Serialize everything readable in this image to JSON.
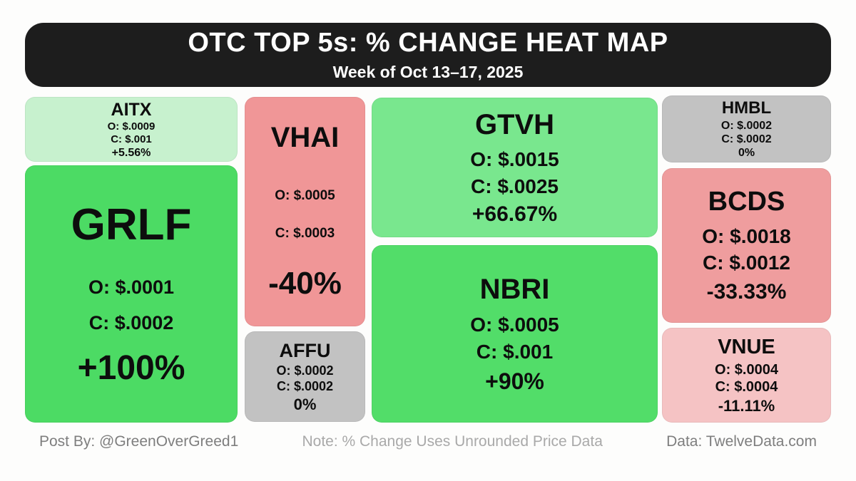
{
  "header": {
    "title": "OTC TOP 5s: % CHANGE HEAT MAP",
    "subtitle": "Week of Oct 13–17, 2025"
  },
  "footer": {
    "post_by": "Post By: @GreenOverGreed1",
    "note": "Note: % Change Uses Unrounded Price Data",
    "source": "Data: TwelveData.com"
  },
  "colors": {
    "header_bg": "#1d1d1d",
    "header_text": "#ffffff",
    "page_bg": "#fdfdfc",
    "gain_strong": "#4cdb64",
    "gain_medium": "#79e78e",
    "gain_light": "#c7f1ce",
    "loss_strong": "#f09697",
    "loss_light": "#f5c3c4",
    "flat_gray": "#c2c2c2",
    "tile_text": "#0d0d0d"
  },
  "chart_data": {
    "type": "heatmap",
    "title": "OTC TOP 5s: % CHANGE HEAT MAP",
    "subtitle": "Week of Oct 13–17, 2025",
    "value_field": "percent_change_week",
    "tiles": [
      {
        "ticker": "AITX",
        "open": 0.0009,
        "close": 0.001,
        "percent_change": 5.56,
        "open_label": "O: $.0009",
        "close_label": "C: $.001",
        "change_label": "+5.56%",
        "color": "#c7f1ce"
      },
      {
        "ticker": "GRLF",
        "open": 0.0001,
        "close": 0.0002,
        "percent_change": 100,
        "open_label": "O: $.0001",
        "close_label": "C: $.0002",
        "change_label": "+100%",
        "color": "#4cdb64"
      },
      {
        "ticker": "VHAI",
        "open": 0.0005,
        "close": 0.0003,
        "percent_change": -40,
        "open_label": "O: $.0005",
        "close_label": "C: $.0003",
        "change_label": "-40%",
        "color": "#f09697"
      },
      {
        "ticker": "AFFU",
        "open": 0.0002,
        "close": 0.0002,
        "percent_change": 0,
        "open_label": "O: $.0002",
        "close_label": "C: $.0002",
        "change_label": "0%",
        "color": "#c2c2c2"
      },
      {
        "ticker": "GTVH",
        "open": 0.0015,
        "close": 0.0025,
        "percent_change": 66.67,
        "open_label": "O: $.0015",
        "close_label": "C: $.0025",
        "change_label": "+66.67%",
        "color": "#79e78e"
      },
      {
        "ticker": "NBRI",
        "open": 0.0005,
        "close": 0.001,
        "percent_change": 90,
        "open_label": "O: $.0005",
        "close_label": "C: $.001",
        "change_label": "+90%",
        "color": "#52dd69"
      },
      {
        "ticker": "HMBL",
        "open": 0.0002,
        "close": 0.0002,
        "percent_change": 0,
        "open_label": "O: $.0002",
        "close_label": "C: $.0002",
        "change_label": "0%",
        "color": "#c2c2c2"
      },
      {
        "ticker": "BCDS",
        "open": 0.0018,
        "close": 0.0012,
        "percent_change": -33.33,
        "open_label": "O: $.0018",
        "close_label": "C: $.0012",
        "change_label": "-33.33%",
        "color": "#ef9d9e"
      },
      {
        "ticker": "VNUE",
        "open": 0.0004,
        "close": 0.0004,
        "percent_change": -11.11,
        "open_label": "O: $.0004",
        "close_label": "C: $.0004",
        "change_label": "-11.11%",
        "color": "#f5c3c4"
      }
    ]
  }
}
